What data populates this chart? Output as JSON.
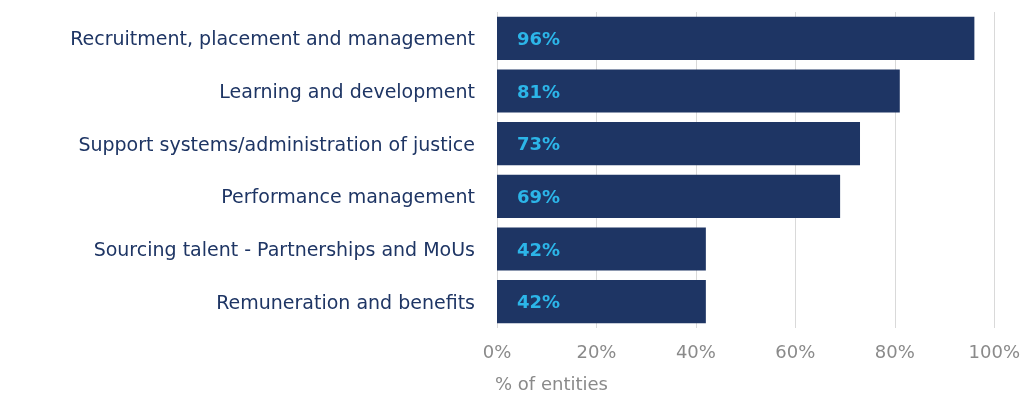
{
  "chart_data": {
    "type": "bar",
    "orientation": "horizontal",
    "xlabel": "% of entities",
    "categories": [
      "Recruitment, placement and management",
      "Learning and development",
      "Support systems/administration of justice",
      "Performance management",
      "Sourcing talent - Partnerships and MoUs",
      "Remuneration and benefits"
    ],
    "values": [
      96,
      81,
      73,
      69,
      42,
      42
    ],
    "value_labels": [
      "96%",
      "81%",
      "73%",
      "69%",
      "42%",
      "42%"
    ],
    "color": "#1e3564",
    "xlim": [
      0,
      100
    ],
    "xticks": [
      {
        "value": 0,
        "label": "0%"
      },
      {
        "value": 20,
        "label": "20%"
      },
      {
        "value": 40,
        "label": "40%"
      },
      {
        "value": 60,
        "label": "60%"
      },
      {
        "value": 80,
        "label": "80%"
      },
      {
        "value": 100,
        "label": "100%"
      }
    ],
    "grid": "x"
  }
}
